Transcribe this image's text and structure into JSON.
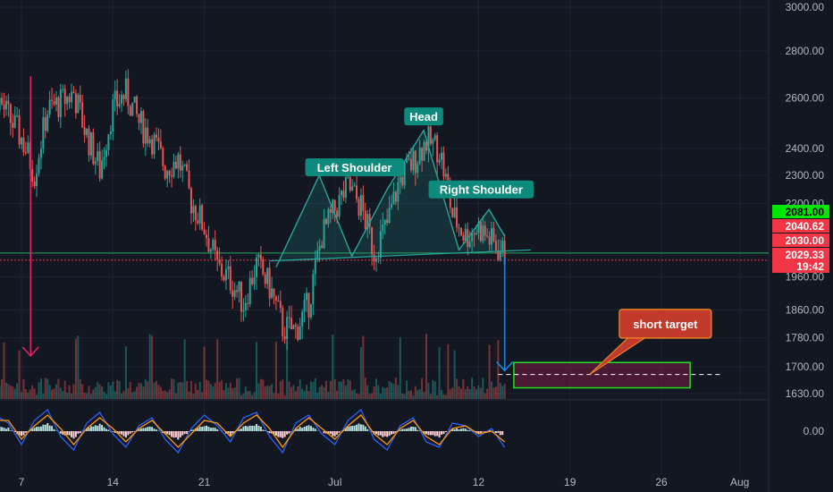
{
  "chart_data": {
    "type": "candlestick",
    "title": "",
    "y_axis": {
      "ticks": [
        "3000.00",
        "2800.00",
        "2600.00",
        "2400.00",
        "2300.00",
        "2200.00",
        "1960.00",
        "1860.00",
        "1780.00",
        "1700.00",
        "1630.00"
      ],
      "tick_values": [
        3000,
        2800,
        2600,
        2400,
        2300,
        2200,
        1960,
        1860,
        1780,
        1700,
        1630
      ],
      "scale": "log",
      "ylim": [
        1615,
        3000
      ]
    },
    "oscillator_axis": {
      "ticks": [
        "0.00"
      ]
    },
    "x_axis": {
      "ticks": [
        "7",
        "14",
        "21",
        "Jul",
        "12",
        "19",
        "26",
        "Aug"
      ],
      "tick_days": [
        7,
        14,
        21,
        31,
        42,
        49,
        56,
        62
      ]
    },
    "price_tags": [
      {
        "label": "2081.00",
        "value": 2081,
        "bg": "#00e600",
        "fg": "#000000"
      },
      {
        "label": "2040.62",
        "value": 2040.62,
        "bg": "#f23645",
        "fg": "#ffffff"
      },
      {
        "label": "2030.00",
        "value": 2030,
        "bg": "#f23645",
        "fg": "#ffffff"
      },
      {
        "label": "2029.33",
        "value": 2029.33,
        "bg": "#f23645",
        "fg": "#ffffff"
      },
      {
        "label": "19:42",
        "value": null,
        "bg": "#f23645",
        "fg": "#ffffff"
      }
    ],
    "horizontal_levels": [
      {
        "value": 2035,
        "color": "#26a65b",
        "style": "solid"
      },
      {
        "value": 2012,
        "color": "#f23645",
        "style": "dotted"
      }
    ],
    "annotations": [
      {
        "text": "Head",
        "day": 37.8,
        "value": 2525,
        "type": "label",
        "bg": "#0d8a7c"
      },
      {
        "text": "Left Shoulder",
        "day": 32.5,
        "value": 2330,
        "type": "label",
        "bg": "#0d8a7c"
      },
      {
        "text": "Right Shoulder",
        "day": 42.2,
        "value": 2250,
        "type": "label",
        "bg": "#0d8a7c"
      },
      {
        "text": "short target",
        "day": 56.3,
        "value": 1820,
        "type": "callout",
        "bg": "#c0392b"
      }
    ],
    "pattern": {
      "name": "head and shoulders",
      "points": [
        {
          "day": 26.5,
          "value": 1990
        },
        {
          "day": 29.8,
          "value": 2300
        },
        {
          "day": 32.3,
          "value": 2025
        },
        {
          "day": 35.0,
          "value": 2250
        },
        {
          "day": 37.8,
          "value": 2470
        },
        {
          "day": 40.5,
          "value": 2045
        },
        {
          "day": 42.8,
          "value": 2180
        },
        {
          "day": 44.0,
          "value": 2090
        }
      ],
      "neckline": [
        {
          "day": 26.0,
          "value": 2010
        },
        {
          "day": 46.0,
          "value": 2045
        }
      ]
    },
    "projection": {
      "from_day": 44.0,
      "from_value": 2020,
      "to_value": 1690
    },
    "target_zone": {
      "day_start": 44.7,
      "day_end": 58.2,
      "top": 1712,
      "bottom": 1645,
      "dashed_value": 1680
    },
    "series": [
      {
        "name": "price",
        "days": [
          0,
          1,
          2,
          3,
          4,
          5,
          6,
          7,
          8,
          9,
          10,
          11,
          12,
          13,
          14,
          15,
          16,
          17,
          18,
          19,
          20,
          21,
          22,
          23,
          24,
          25,
          26,
          27,
          28,
          29,
          30,
          31,
          32,
          33,
          34,
          35,
          36,
          37,
          38,
          39,
          40,
          41,
          42,
          43,
          44
        ],
        "values": [
          2700,
          2760,
          2840,
          2650,
          2560,
          2620,
          2520,
          2440,
          2310,
          2550,
          2580,
          2620,
          2450,
          2320,
          2560,
          2620,
          2500,
          2440,
          2330,
          2360,
          2210,
          2120,
          1990,
          1950,
          1880,
          2000,
          1930,
          1810,
          1800,
          1880,
          2090,
          2180,
          2260,
          2190,
          2040,
          2130,
          2290,
          2350,
          2430,
          2400,
          2160,
          2090,
          2120,
          2070,
          2030
        ]
      }
    ],
    "oscillator": {
      "series": [
        {
          "name": "",
          "color": "#2962ff",
          "values": [
            0.2,
            0.5,
            -0.4,
            -0.8,
            0.1,
            0.6,
            0.3,
            -0.5,
            0.4,
            0.8,
            -0.2,
            -0.7,
            0.3,
            0.7,
            -0.1,
            -0.6,
            0.2,
            0.5,
            -0.3,
            -0.8,
            0.1,
            0.6,
            0.2,
            -0.4,
            0.5,
            0.7,
            -0.2,
            -0.8,
            0.3,
            0.6,
            -0.1,
            -0.5,
            0.4,
            0.8,
            -0.3,
            -0.7,
            0.2,
            0.5,
            -0.4,
            -0.6,
            0.3,
            0.2,
            -0.2,
            0.1,
            -0.6
          ]
        },
        {
          "name": "",
          "color": "#ff9800",
          "values": [
            0.1,
            0.4,
            -0.2,
            -0.6,
            -0.1,
            0.4,
            0.4,
            -0.3,
            0.2,
            0.6,
            0.1,
            -0.5,
            0.1,
            0.5,
            0.1,
            -0.4,
            0.1,
            0.4,
            -0.1,
            -0.6,
            -0.1,
            0.4,
            0.3,
            -0.2,
            0.3,
            0.6,
            0.1,
            -0.6,
            0.1,
            0.5,
            0.1,
            -0.3,
            0.2,
            0.6,
            -0.1,
            -0.5,
            0.1,
            0.4,
            -0.2,
            -0.5,
            0.1,
            0.2,
            -0.1,
            0.0,
            -0.4
          ]
        }
      ]
    }
  }
}
